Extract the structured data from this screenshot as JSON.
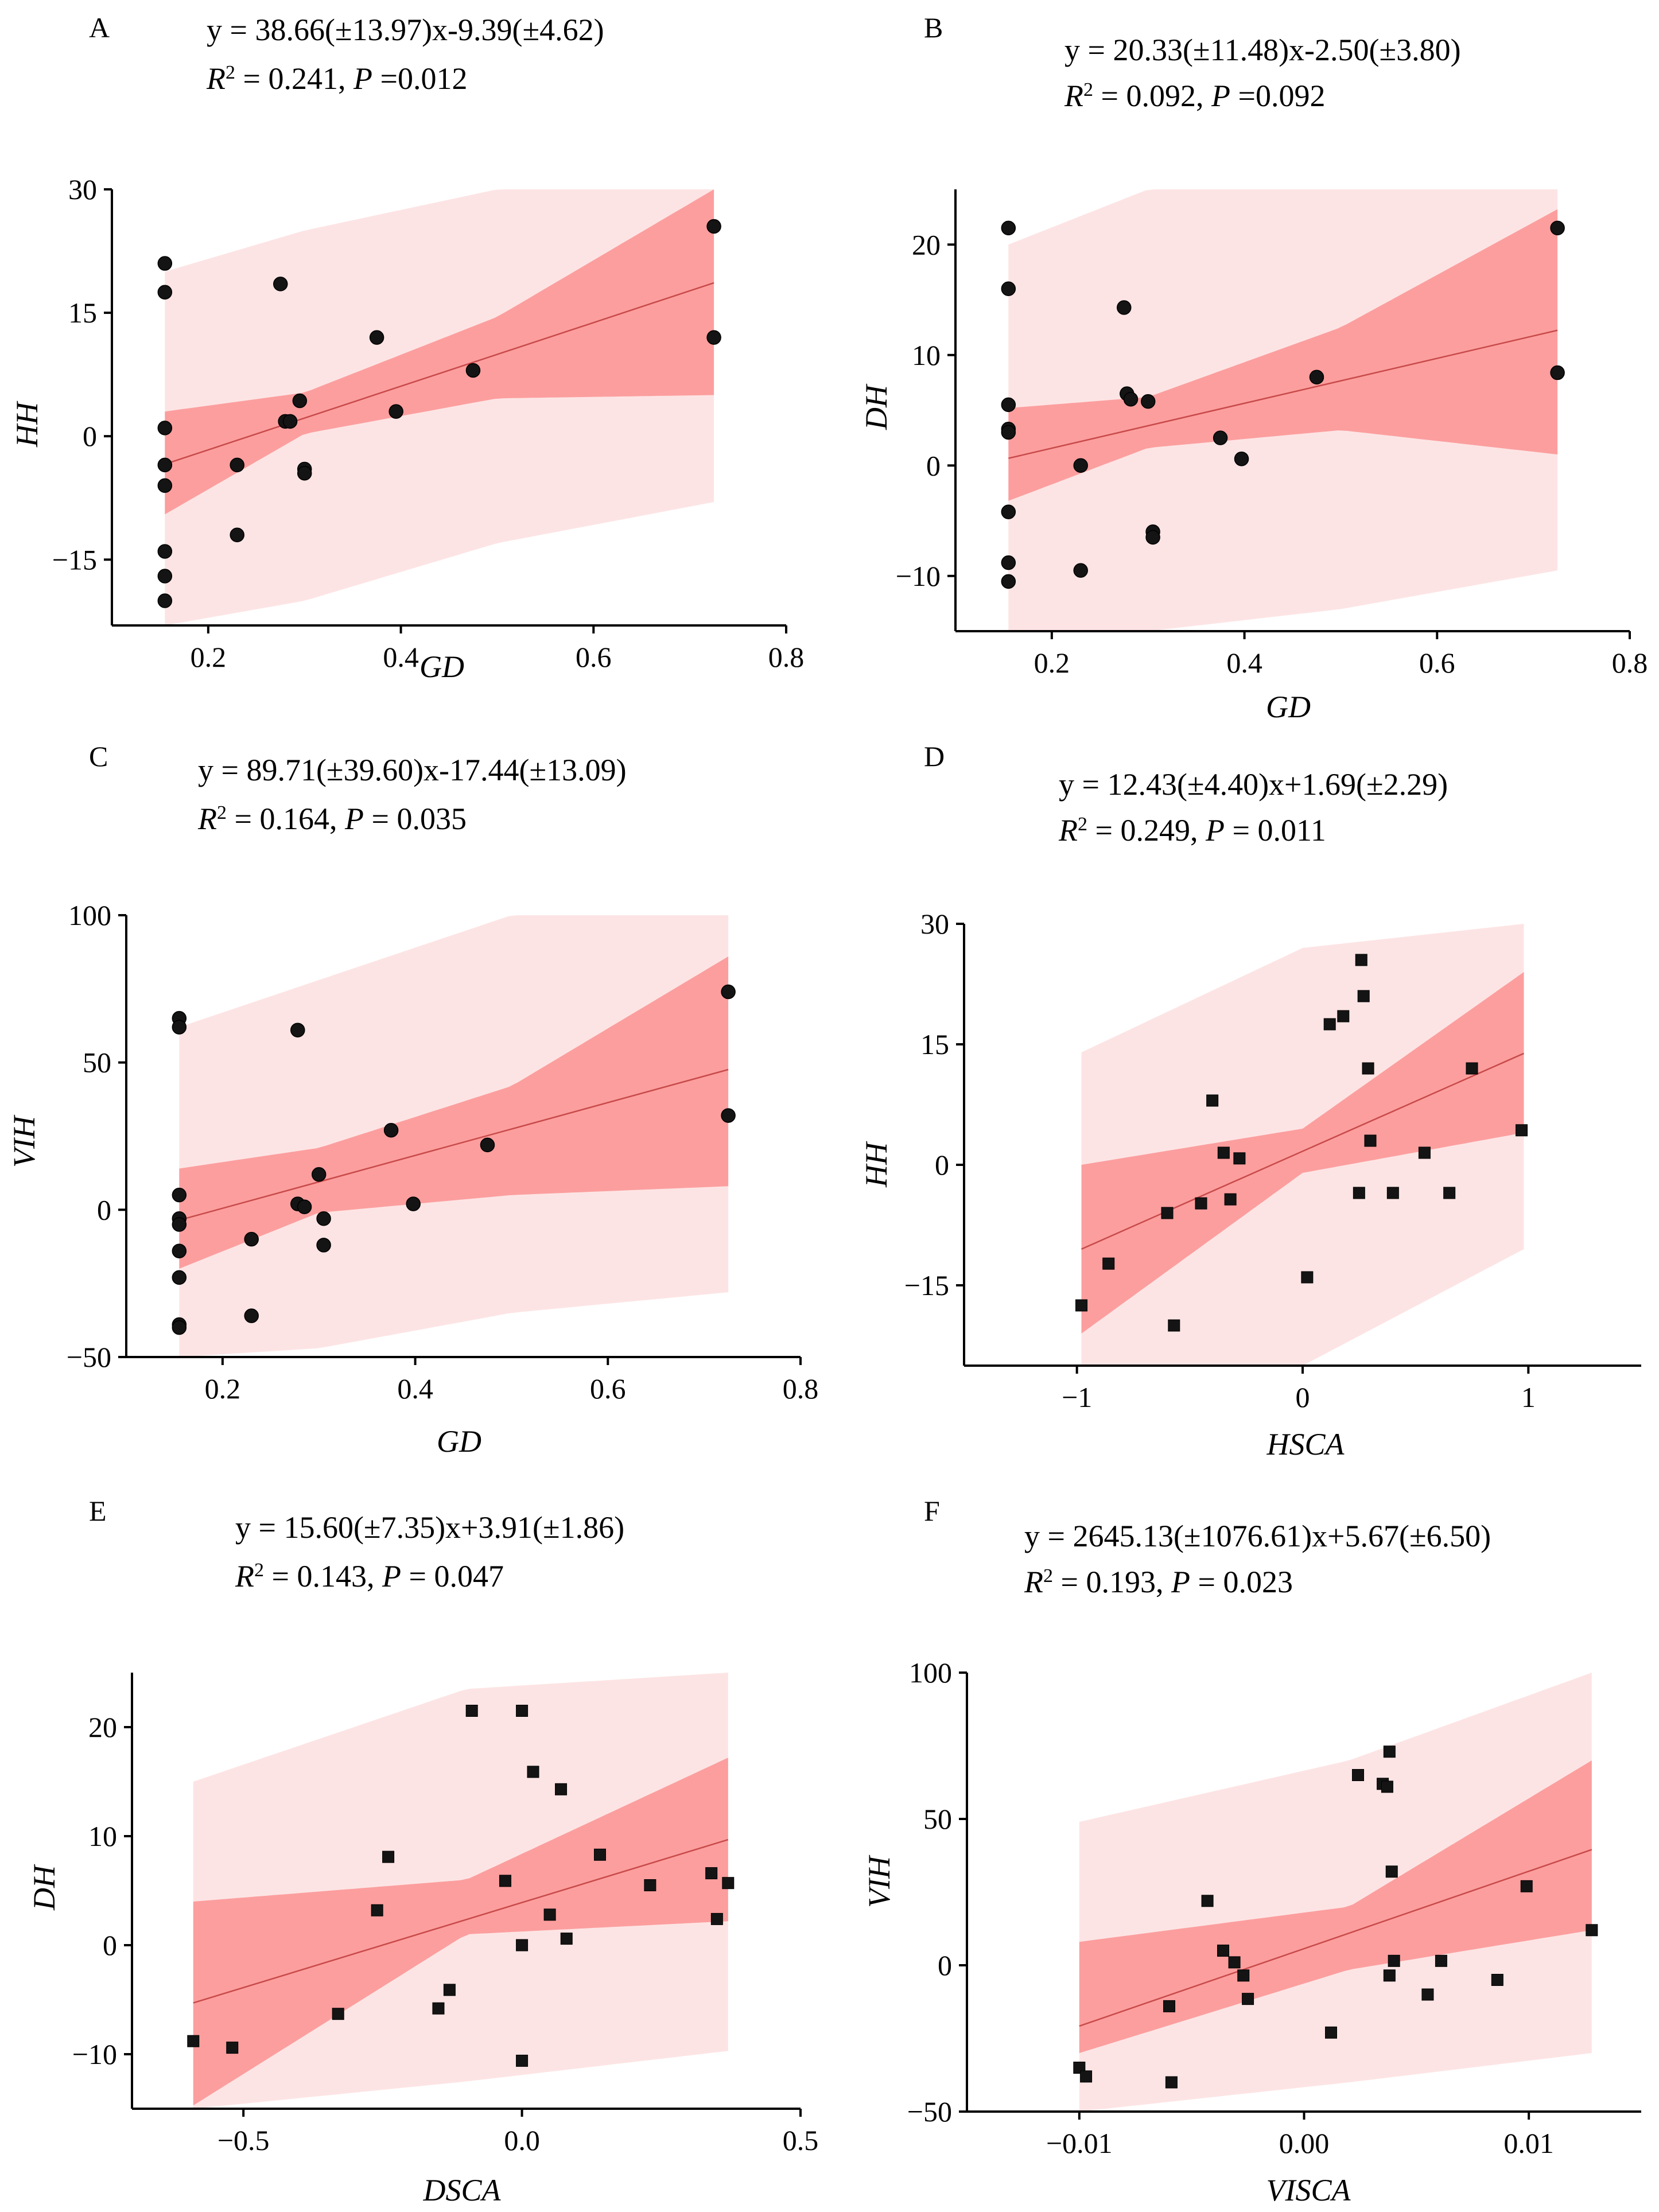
{
  "chart_data": [
    {
      "panel": "A",
      "type": "scatter",
      "marker": "circle",
      "equation": "y = 38.66(±13.97)x-9.39(±4.62)",
      "r2_value": "0.241",
      "p_value": "0.012",
      "p_sep": "=",
      "xlabel": "GD",
      "ylabel": "HH",
      "xlim": [
        0.1,
        0.8
      ],
      "ylim": [
        -23,
        30
      ],
      "xticks": [
        0.2,
        0.4,
        0.6,
        0.8
      ],
      "xtick_labels": [
        "0.2",
        "0.4",
        "0.6",
        "0.8"
      ],
      "yticks": [
        -15,
        0,
        15,
        30
      ],
      "ytick_labels": [
        "−15",
        "0",
        "15",
        "30"
      ],
      "slope": 38.66,
      "intercept": -9.39,
      "x_range": [
        0.155,
        0.725
      ],
      "band_conf": [
        [
          0.155,
          -9.5,
          3.0
        ],
        [
          0.3,
          0.3,
          5.3
        ],
        [
          0.5,
          4.6,
          14.5
        ],
        [
          0.725,
          5.0,
          30
        ]
      ],
      "band_pred": [
        [
          0.155,
          -23,
          20.0
        ],
        [
          0.3,
          -20,
          25
        ],
        [
          0.5,
          -13,
          30
        ],
        [
          0.725,
          -8,
          30
        ]
      ],
      "points": [
        [
          0.155,
          21
        ],
        [
          0.155,
          17.5
        ],
        [
          0.155,
          1
        ],
        [
          0.155,
          -3.5
        ],
        [
          0.155,
          -6
        ],
        [
          0.155,
          -14
        ],
        [
          0.155,
          -17
        ],
        [
          0.155,
          -20
        ],
        [
          0.23,
          -3.5
        ],
        [
          0.23,
          -12
        ],
        [
          0.275,
          18.5
        ],
        [
          0.28,
          1.8
        ],
        [
          0.285,
          1.8
        ],
        [
          0.295,
          4.3
        ],
        [
          0.3,
          -4
        ],
        [
          0.3,
          -4.5
        ],
        [
          0.375,
          12
        ],
        [
          0.395,
          3
        ],
        [
          0.475,
          8
        ],
        [
          0.725,
          25.5
        ],
        [
          0.725,
          12
        ]
      ]
    },
    {
      "panel": "B",
      "type": "scatter",
      "marker": "circle",
      "equation": "y = 20.33(±11.48)x-2.50(±3.80)",
      "r2_value": "0.092",
      "p_value": "0.092",
      "p_sep": "=",
      "xlabel": "GD",
      "ylabel": "DH",
      "xlim": [
        0.1,
        0.8
      ],
      "ylim": [
        -15,
        25
      ],
      "xticks": [
        0.2,
        0.4,
        0.6,
        0.8
      ],
      "xtick_labels": [
        "0.2",
        "0.4",
        "0.6",
        "0.8"
      ],
      "yticks": [
        -10,
        0,
        10,
        20
      ],
      "ytick_labels": [
        "−10",
        "0",
        "10",
        "20"
      ],
      "slope": 20.33,
      "intercept": -2.5,
      "x_range": [
        0.155,
        0.725
      ],
      "band_conf": [
        [
          0.155,
          -3.2,
          5.2
        ],
        [
          0.3,
          1.6,
          6.2
        ],
        [
          0.5,
          3.2,
          12.5
        ],
        [
          0.725,
          1.0,
          23.2
        ]
      ],
      "band_pred": [
        [
          0.155,
          -15,
          20.0
        ],
        [
          0.3,
          -15,
          25
        ],
        [
          0.5,
          -13,
          25
        ],
        [
          0.725,
          -9.5,
          25
        ]
      ],
      "points": [
        [
          0.155,
          21.5
        ],
        [
          0.155,
          16
        ],
        [
          0.155,
          5.5
        ],
        [
          0.155,
          3.3
        ],
        [
          0.155,
          3
        ],
        [
          0.155,
          -4.2
        ],
        [
          0.155,
          -8.8
        ],
        [
          0.155,
          -10.5
        ],
        [
          0.23,
          0
        ],
        [
          0.23,
          -9.5
        ],
        [
          0.275,
          14.3
        ],
        [
          0.278,
          6.5
        ],
        [
          0.282,
          6
        ],
        [
          0.3,
          5.8
        ],
        [
          0.305,
          -6
        ],
        [
          0.305,
          -6.5
        ],
        [
          0.375,
          2.5
        ],
        [
          0.397,
          0.6
        ],
        [
          0.475,
          8
        ],
        [
          0.725,
          21.5
        ],
        [
          0.725,
          8.4
        ]
      ]
    },
    {
      "panel": "C",
      "type": "scatter",
      "marker": "circle",
      "equation": "y = 89.71(±39.60)x-17.44(±13.09)",
      "r2_value": "0.164",
      "p_value": "0.035",
      "p_sep": "= ",
      "xlabel": "GD",
      "ylabel": "VIH",
      "xlim": [
        0.1,
        0.8
      ],
      "ylim": [
        -50,
        100
      ],
      "xticks": [
        0.2,
        0.4,
        0.6,
        0.8
      ],
      "xtick_labels": [
        "0.2",
        "0.4",
        "0.6",
        "0.8"
      ],
      "yticks": [
        -50,
        0,
        50,
        100
      ],
      "ytick_labels": [
        "−50",
        "0",
        "50",
        "100"
      ],
      "slope": 89.71,
      "intercept": -17.44,
      "x_range": [
        0.155,
        0.725
      ],
      "band_conf": [
        [
          0.155,
          -20,
          14
        ],
        [
          0.3,
          -1,
          21
        ],
        [
          0.5,
          5,
          42
        ],
        [
          0.725,
          8,
          86
        ]
      ],
      "band_pred": [
        [
          0.155,
          -50,
          62
        ],
        [
          0.3,
          -47,
          78
        ],
        [
          0.5,
          -35,
          100
        ],
        [
          0.725,
          -28,
          100
        ]
      ],
      "points": [
        [
          0.155,
          65
        ],
        [
          0.155,
          62
        ],
        [
          0.155,
          5
        ],
        [
          0.155,
          -3
        ],
        [
          0.155,
          -5
        ],
        [
          0.155,
          -14
        ],
        [
          0.155,
          -23
        ],
        [
          0.155,
          -39
        ],
        [
          0.155,
          -40
        ],
        [
          0.23,
          -10
        ],
        [
          0.23,
          -36
        ],
        [
          0.278,
          61
        ],
        [
          0.278,
          2
        ],
        [
          0.285,
          1
        ],
        [
          0.3,
          12
        ],
        [
          0.305,
          -3
        ],
        [
          0.305,
          -12
        ],
        [
          0.375,
          27
        ],
        [
          0.398,
          2
        ],
        [
          0.475,
          22
        ],
        [
          0.725,
          74
        ],
        [
          0.725,
          32
        ]
      ]
    },
    {
      "panel": "D",
      "type": "scatter",
      "marker": "square",
      "equation": "y = 12.43(±4.40)x+1.69(±2.29)",
      "r2_value": "0.249",
      "p_value": "0.011",
      "p_sep": "= ",
      "xlabel": "HSCA",
      "ylabel": "HH",
      "xlim": [
        -1.5,
        1.5
      ],
      "ylim": [
        -25,
        30
      ],
      "xticks": [
        -1,
        0,
        1
      ],
      "xtick_labels": [
        "−1",
        "0",
        "1"
      ],
      "yticks": [
        -15,
        0,
        15,
        30
      ],
      "ytick_labels": [
        "−15",
        "0",
        "15",
        "30"
      ],
      "slope": 12.43,
      "intercept": 1.69,
      "x_range": [
        -0.98,
        0.98
      ],
      "band_conf": [
        [
          -0.98,
          -21,
          0
        ],
        [
          0,
          -1,
          4.5
        ],
        [
          0.98,
          4,
          24
        ]
      ],
      "band_pred": [
        [
          -0.98,
          -25,
          14
        ],
        [
          0,
          -25,
          27
        ],
        [
          0.98,
          -10.5,
          30
        ]
      ],
      "points": [
        [
          -0.98,
          -17.5
        ],
        [
          -0.86,
          -12.3
        ],
        [
          -0.6,
          -6
        ],
        [
          -0.57,
          -20
        ],
        [
          -0.45,
          -4.8
        ],
        [
          -0.4,
          8
        ],
        [
          -0.35,
          1.5
        ],
        [
          -0.32,
          -4.3
        ],
        [
          -0.28,
          0.8
        ],
        [
          0.02,
          -14
        ],
        [
          0.12,
          17.5
        ],
        [
          0.18,
          18.5
        ],
        [
          0.25,
          -3.5
        ],
        [
          0.26,
          25.5
        ],
        [
          0.27,
          21
        ],
        [
          0.29,
          12
        ],
        [
          0.3,
          3
        ],
        [
          0.4,
          -3.5
        ],
        [
          0.54,
          1.5
        ],
        [
          0.65,
          -3.5
        ],
        [
          0.75,
          12
        ],
        [
          0.97,
          4.3
        ]
      ]
    },
    {
      "panel": "E",
      "type": "scatter",
      "marker": "square",
      "equation": "y = 15.60(±7.35)x+3.91(±1.86)",
      "r2_value": "0.143",
      "p_value": "0.047",
      "p_sep": "= ",
      "xlabel": "DSCA",
      "ylabel": "DH",
      "xlim": [
        -0.7,
        0.5
      ],
      "ylim": [
        -15,
        25
      ],
      "xticks": [
        -0.5,
        0.0,
        0.5
      ],
      "xtick_labels": [
        "−0.5",
        "0.0",
        "0.5"
      ],
      "yticks": [
        -10,
        0,
        10,
        20
      ],
      "ytick_labels": [
        "−10",
        "0",
        "10",
        "20"
      ],
      "slope": 15.6,
      "intercept": 3.91,
      "x_range": [
        -0.59,
        0.37
      ],
      "band_conf": [
        [
          -0.59,
          -14.7,
          4.0
        ],
        [
          -0.1,
          1.0,
          6.0
        ],
        [
          0.37,
          2.2,
          17.2
        ]
      ],
      "band_pred": [
        [
          -0.59,
          -15,
          15.0
        ],
        [
          -0.1,
          -12.5,
          23.5
        ],
        [
          0.37,
          -9.7,
          25
        ]
      ],
      "points": [
        [
          -0.59,
          -8.8
        ],
        [
          -0.52,
          -9.4
        ],
        [
          -0.33,
          -6.3
        ],
        [
          -0.26,
          3.2
        ],
        [
          -0.24,
          8.1
        ],
        [
          -0.15,
          -5.8
        ],
        [
          -0.13,
          -4.1
        ],
        [
          -0.09,
          21.5
        ],
        [
          -0.03,
          5.9
        ],
        [
          0.0,
          21.5
        ],
        [
          0.0,
          0
        ],
        [
          0.0,
          -10.6
        ],
        [
          0.02,
          15.9
        ],
        [
          0.05,
          2.8
        ],
        [
          0.07,
          14.3
        ],
        [
          0.08,
          0.6
        ],
        [
          0.14,
          8.3
        ],
        [
          0.23,
          5.5
        ],
        [
          0.34,
          6.6
        ],
        [
          0.35,
          2.4
        ],
        [
          0.37,
          5.7
        ]
      ]
    },
    {
      "panel": "F",
      "type": "scatter",
      "marker": "square",
      "equation": "y = 2645.13(±1076.61)x+5.67(±6.50)",
      "r2_value": "0.193",
      "p_value": "0.023",
      "p_sep": "= ",
      "xlabel": "VISCA",
      "ylabel": "VIH",
      "xlim": [
        -0.015,
        0.015
      ],
      "ylim": [
        -50,
        100
      ],
      "xticks": [
        -0.01,
        0.0,
        0.01
      ],
      "xtick_labels": [
        "−0.01",
        "0.00",
        "0.01"
      ],
      "yticks": [
        -50,
        0,
        50,
        100
      ],
      "ytick_labels": [
        "−50",
        "0",
        "50",
        "100"
      ],
      "slope": 2645.13,
      "intercept": 5.67,
      "x_range": [
        -0.01,
        0.0128
      ],
      "band_conf": [
        [
          -0.01,
          -30,
          8
        ],
        [
          0.002,
          -1.5,
          20
        ],
        [
          0.0128,
          12,
          70
        ]
      ],
      "band_pred": [
        [
          -0.01,
          -50,
          49
        ],
        [
          0.002,
          -40,
          70
        ],
        [
          0.0128,
          -30,
          100
        ]
      ],
      "points": [
        [
          -0.01,
          -35
        ],
        [
          -0.0097,
          -38
        ],
        [
          -0.006,
          -14
        ],
        [
          -0.0059,
          -40
        ],
        [
          -0.0043,
          22
        ],
        [
          -0.0036,
          5
        ],
        [
          -0.0031,
          1
        ],
        [
          -0.0027,
          -3.5
        ],
        [
          -0.0025,
          -11.5
        ],
        [
          0.0012,
          -23
        ],
        [
          0.0024,
          65
        ],
        [
          0.0035,
          62
        ],
        [
          0.0037,
          61
        ],
        [
          0.0038,
          73
        ],
        [
          0.0038,
          -3.5
        ],
        [
          0.0039,
          32
        ],
        [
          0.004,
          1.5
        ],
        [
          0.0055,
          -10
        ],
        [
          0.0061,
          1.5
        ],
        [
          0.0086,
          -5
        ],
        [
          0.0099,
          27
        ],
        [
          0.0128,
          12
        ]
      ]
    }
  ]
}
